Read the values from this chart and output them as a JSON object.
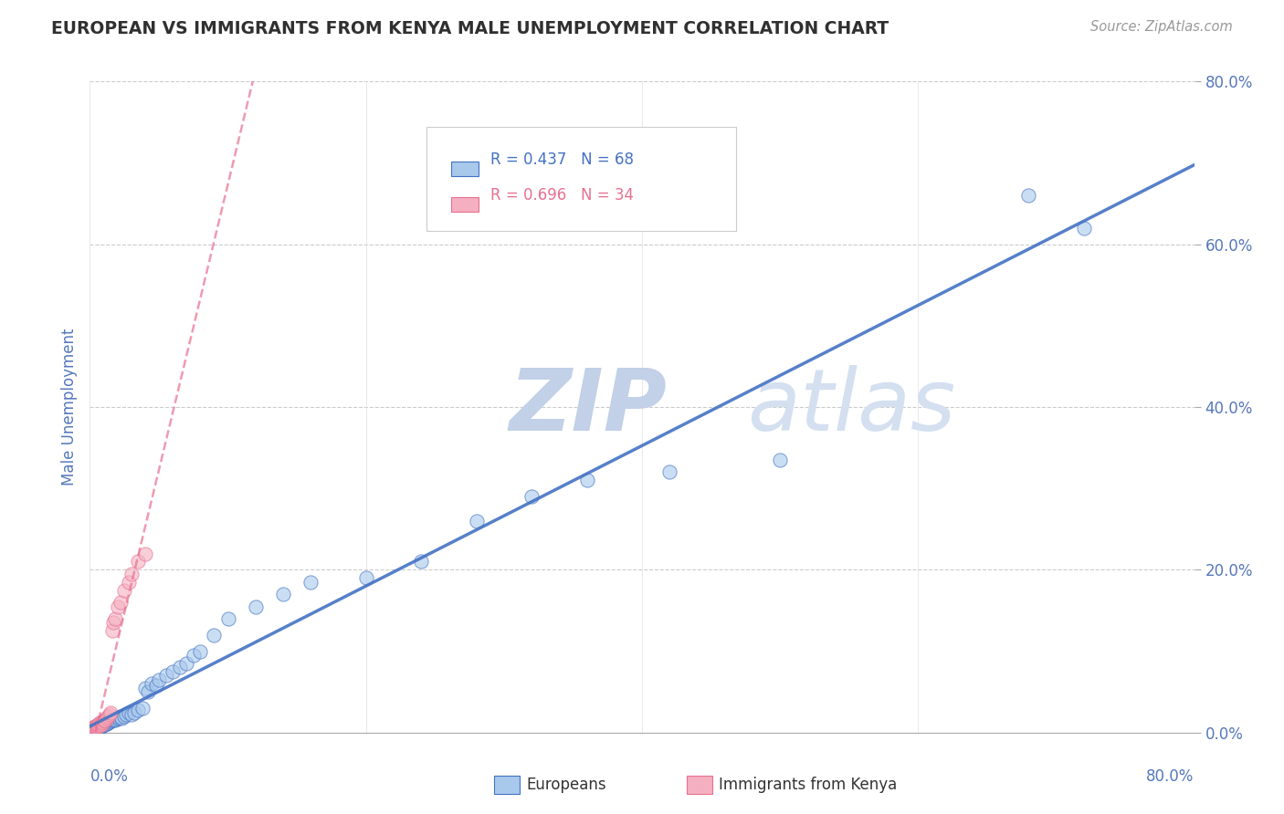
{
  "title": "EUROPEAN VS IMMIGRANTS FROM KENYA MALE UNEMPLOYMENT CORRELATION CHART",
  "source": "Source: ZipAtlas.com",
  "ylabel": "Male Unemployment",
  "y_tick_labels": [
    "0.0%",
    "20.0%",
    "40.0%",
    "60.0%",
    "80.0%"
  ],
  "xlim": [
    0,
    0.8
  ],
  "ylim": [
    0,
    0.8
  ],
  "legend_r1": "R = 0.437",
  "legend_n1": "N = 68",
  "legend_r2": "R = 0.696",
  "legend_n2": "N = 34",
  "series1_color": "#A8C8EC",
  "series2_color": "#F4B0C0",
  "trendline1_color": "#4472C4",
  "trendline2_color": "#E87090",
  "watermark_zip_color": "#C8D8EE",
  "watermark_atlas_color": "#D8E4F4",
  "title_color": "#303030",
  "axis_label_color": "#5577BB",
  "grid_color": "#CCCCCC",
  "europeans_x": [
    0.001,
    0.002,
    0.002,
    0.003,
    0.003,
    0.004,
    0.004,
    0.005,
    0.005,
    0.006,
    0.006,
    0.007,
    0.007,
    0.008,
    0.008,
    0.009,
    0.009,
    0.01,
    0.01,
    0.011,
    0.011,
    0.012,
    0.012,
    0.013,
    0.013,
    0.014,
    0.015,
    0.015,
    0.016,
    0.017,
    0.018,
    0.019,
    0.02,
    0.021,
    0.022,
    0.023,
    0.025,
    0.026,
    0.028,
    0.03,
    0.032,
    0.035,
    0.038,
    0.04,
    0.042,
    0.045,
    0.048,
    0.05,
    0.055,
    0.06,
    0.065,
    0.07,
    0.075,
    0.08,
    0.09,
    0.1,
    0.12,
    0.14,
    0.16,
    0.2,
    0.24,
    0.28,
    0.32,
    0.36,
    0.42,
    0.5,
    0.68,
    0.72
  ],
  "europeans_y": [
    0.003,
    0.003,
    0.004,
    0.004,
    0.005,
    0.005,
    0.006,
    0.005,
    0.007,
    0.006,
    0.007,
    0.008,
    0.007,
    0.009,
    0.008,
    0.009,
    0.01,
    0.01,
    0.011,
    0.01,
    0.012,
    0.011,
    0.013,
    0.012,
    0.014,
    0.013,
    0.015,
    0.014,
    0.016,
    0.015,
    0.016,
    0.017,
    0.018,
    0.019,
    0.02,
    0.018,
    0.02,
    0.022,
    0.025,
    0.022,
    0.025,
    0.028,
    0.03,
    0.055,
    0.05,
    0.06,
    0.058,
    0.065,
    0.07,
    0.075,
    0.08,
    0.085,
    0.095,
    0.1,
    0.12,
    0.14,
    0.155,
    0.17,
    0.185,
    0.19,
    0.21,
    0.26,
    0.29,
    0.31,
    0.32,
    0.335,
    0.66,
    0.62
  ],
  "kenya_x": [
    0.001,
    0.001,
    0.002,
    0.002,
    0.003,
    0.003,
    0.004,
    0.004,
    0.005,
    0.005,
    0.006,
    0.006,
    0.007,
    0.007,
    0.008,
    0.008,
    0.009,
    0.01,
    0.01,
    0.011,
    0.012,
    0.013,
    0.014,
    0.015,
    0.016,
    0.017,
    0.018,
    0.02,
    0.022,
    0.025,
    0.028,
    0.03,
    0.035,
    0.04
  ],
  "kenya_y": [
    0.003,
    0.004,
    0.004,
    0.006,
    0.005,
    0.007,
    0.006,
    0.008,
    0.007,
    0.009,
    0.008,
    0.01,
    0.009,
    0.012,
    0.01,
    0.013,
    0.012,
    0.015,
    0.014,
    0.016,
    0.018,
    0.02,
    0.022,
    0.025,
    0.125,
    0.135,
    0.14,
    0.155,
    0.16,
    0.175,
    0.185,
    0.195,
    0.21,
    0.22
  ]
}
